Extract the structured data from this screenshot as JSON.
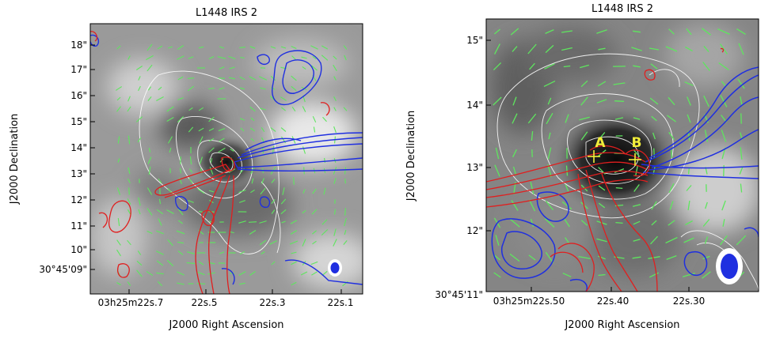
{
  "panels": [
    {
      "title": "L1448 IRS 2",
      "x_axis_label": "J2000 Right Ascension",
      "y_axis_label": "J2000 Declination",
      "x_tick_labels": [
        "03h25m22s.7",
        "22s.5",
        "22s.3",
        "22s.1"
      ],
      "y_tick_labels": [
        "30°45'09\"",
        "10\"",
        "11\"",
        "12\"",
        "13\"",
        "14\"",
        "15\"",
        "16\"",
        "17\"",
        "18\""
      ]
    },
    {
      "title": "L1448 IRS 2",
      "x_axis_label": "J2000 Right Ascension",
      "y_axis_label": "J2000 Declination",
      "x_tick_labels": [
        "03h25m22s.50",
        "22s.40",
        "22s.30"
      ],
      "y_tick_labels": [
        "30°45'11\"",
        "12\"",
        "13\"",
        "14\"",
        "15\""
      ],
      "source_labels": [
        "A",
        "B"
      ]
    }
  ],
  "colors": {
    "blue_contours": "#1f2fe0",
    "red_contours": "#e01f1f",
    "vectors": "#5ee65e",
    "dust_contours": "#ffffff",
    "source_labels": "#f2ee3a"
  },
  "chart_data": [
    {
      "type": "other",
      "title": "L1448 IRS 2",
      "xlabel": "J2000 Right Ascension",
      "ylabel": "J2000 Declination",
      "x_ticks": [
        "03h25m22.7s",
        "22.5s",
        "22.3s",
        "22.1s"
      ],
      "y_ticks": [
        "30°45'09\"",
        "10\"",
        "11\"",
        "12\"",
        "13\"",
        "14\"",
        "15\"",
        "16\"",
        "17\"",
        "18\""
      ]
    },
    {
      "type": "other",
      "title": "L1448 IRS 2",
      "xlabel": "J2000 Right Ascension",
      "ylabel": "J2000 Declination",
      "x_ticks": [
        "03h25m22.50s",
        "22.40s",
        "22.30s"
      ],
      "y_ticks": [
        "30°45'11\"",
        "12\"",
        "13\"",
        "14\"",
        "15\""
      ],
      "annotations": [
        "A",
        "B"
      ]
    }
  ]
}
